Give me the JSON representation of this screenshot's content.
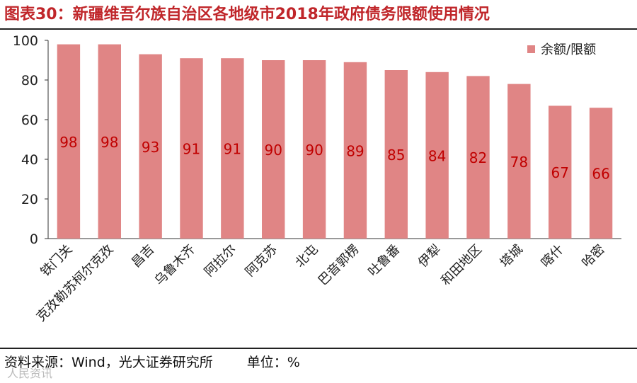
{
  "header": {
    "title": "图表30：新疆维吾尔族自治区各地级市2018年政府债务限额使用情况"
  },
  "footer": {
    "source": "资料来源：Wind，光大证券研究所",
    "unit": "单位：%",
    "watermark": "人民资讯"
  },
  "colors": {
    "bar": "#e08585",
    "label": "#c00000",
    "title": "#c0262a"
  },
  "chart_data": {
    "type": "bar",
    "categories": [
      "铁门关",
      "克孜勒苏柯尔克孜",
      "昌吉",
      "乌鲁木齐",
      "阿拉尔",
      "阿克苏",
      "北屯",
      "巴音郭楞",
      "吐鲁番",
      "伊犁",
      "和田地区",
      "塔城",
      "喀什",
      "哈密"
    ],
    "series": [
      {
        "name": "余额/限额",
        "values": [
          98,
          98,
          93,
          91,
          91,
          90,
          90,
          89,
          85,
          84,
          82,
          78,
          67,
          66
        ],
        "labels": [
          "98",
          "98",
          "93",
          "91",
          "91",
          "90",
          "90",
          "89",
          "85",
          "84",
          "82",
          "78",
          "67",
          "66"
        ]
      }
    ],
    "ylim": [
      0,
      100
    ],
    "yticks": [
      "0",
      "20",
      "40",
      "60",
      "80",
      "100"
    ],
    "legend_position": "top-right",
    "grid": false
  }
}
